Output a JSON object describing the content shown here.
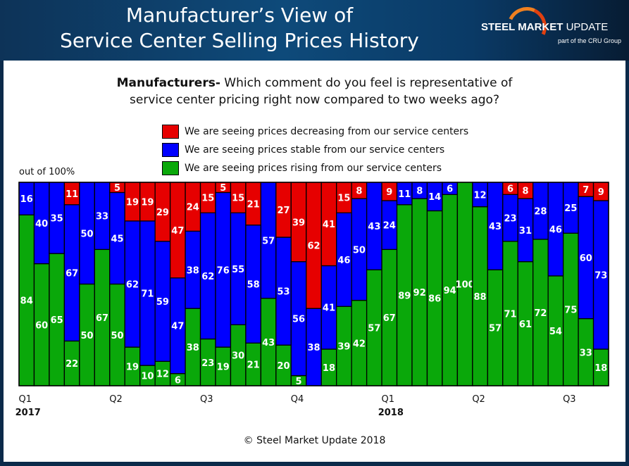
{
  "header": {
    "title_line1": "Manufacturer’s View of",
    "title_line2": "Service Center Selling Prices History"
  },
  "logo": {
    "brand_bold": "STEEL MARKET",
    "brand_light": " UPDATE",
    "sub": "part of the CRU Group"
  },
  "question": {
    "bold": "Manufacturers-",
    "text1": " Which comment do you feel is representative of",
    "text2": "service center pricing right now compared to two weeks ago?"
  },
  "colors": {
    "decreasing": "#e60000",
    "stable": "#0000ff",
    "rising": "#0aa80a"
  },
  "chart_data": {
    "type": "bar",
    "stacked": true,
    "ylabel": "out of 100%",
    "ylim": [
      0,
      100
    ],
    "legend_position": "top",
    "series": [
      {
        "name": "We are seeing prices decreasing from our service centers",
        "color": "#e60000",
        "values": [
          0,
          0,
          0,
          11,
          0,
          0,
          5,
          19,
          19,
          29,
          47,
          24,
          15,
          5,
          15,
          21,
          0,
          27,
          39,
          62,
          41,
          15,
          8,
          0,
          9,
          0,
          0,
          0,
          0,
          0,
          0,
          0,
          6,
          8,
          0,
          0,
          0,
          7,
          9
        ]
      },
      {
        "name": "We are seeing prices stable from our service centers",
        "color": "#0000ff",
        "values": [
          16,
          40,
          35,
          67,
          50,
          33,
          45,
          62,
          71,
          59,
          47,
          38,
          62,
          76,
          55,
          58,
          57,
          53,
          56,
          38,
          41,
          46,
          50,
          43,
          24,
          11,
          8,
          14,
          6,
          0,
          12,
          43,
          23,
          31,
          28,
          46,
          25,
          60,
          73
        ]
      },
      {
        "name": "We are seeing prices rising from our service centers",
        "color": "#0aa80a",
        "values": [
          84,
          60,
          65,
          22,
          50,
          67,
          50,
          19,
          10,
          12,
          6,
          38,
          23,
          19,
          30,
          21,
          43,
          20,
          5,
          0,
          18,
          39,
          42,
          57,
          67,
          89,
          92,
          86,
          94,
          100,
          88,
          57,
          71,
          61,
          72,
          54,
          75,
          33,
          18
        ]
      }
    ],
    "x_tick_labels": [
      {
        "index": 0,
        "label": "Q1",
        "year": "2017"
      },
      {
        "index": 6,
        "label": "Q2",
        "year": ""
      },
      {
        "index": 12,
        "label": "Q3",
        "year": ""
      },
      {
        "index": 18,
        "label": "Q4",
        "year": ""
      },
      {
        "index": 24,
        "label": "Q1",
        "year": "2018"
      },
      {
        "index": 30,
        "label": "Q2",
        "year": ""
      },
      {
        "index": 36,
        "label": "Q3",
        "year": ""
      }
    ]
  },
  "footer": {
    "copyright": "© Steel Market Update 2018"
  }
}
